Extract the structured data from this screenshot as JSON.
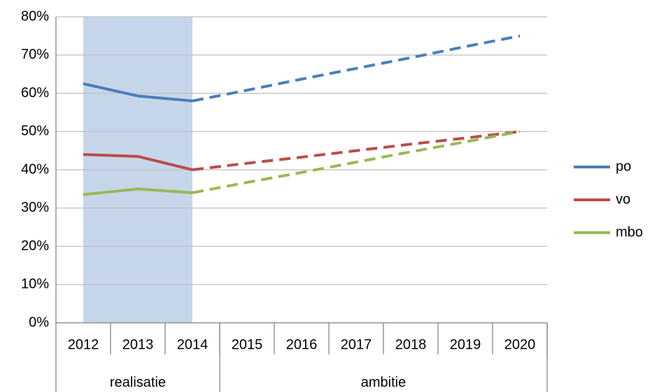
{
  "chart_data": {
    "type": "line",
    "categories": [
      "2012",
      "2013",
      "2014",
      "2015",
      "2016",
      "2017",
      "2018",
      "2019",
      "2020"
    ],
    "category_groups": [
      {
        "label": "realisatie",
        "count": 3
      },
      {
        "label": "ambitie",
        "count": 6
      }
    ],
    "series": [
      {
        "name": "po",
        "color": "#4a7ebb",
        "values": [
          62.5,
          59.3,
          58,
          60.8,
          63.7,
          66.5,
          69.3,
          72.2,
          75
        ]
      },
      {
        "name": "vo",
        "color": "#be4b48",
        "values": [
          44,
          43.5,
          40,
          41.7,
          43.3,
          45,
          46.7,
          48.3,
          50
        ]
      },
      {
        "name": "mbo",
        "color": "#98b954",
        "values": [
          33.5,
          35,
          34,
          36.7,
          39.3,
          42,
          44.7,
          47.3,
          50
        ]
      }
    ],
    "ylim": [
      0,
      80
    ],
    "yticks": [
      {
        "value": 0,
        "label": "0%"
      },
      {
        "value": 10,
        "label": "10%"
      },
      {
        "value": 20,
        "label": "20%"
      },
      {
        "value": 30,
        "label": "30%"
      },
      {
        "value": 40,
        "label": "40%"
      },
      {
        "value": 50,
        "label": "50%"
      },
      {
        "value": 60,
        "label": "60%"
      },
      {
        "value": 70,
        "label": "70%"
      },
      {
        "value": 80,
        "label": "80%"
      }
    ],
    "grid": true,
    "legend": "right",
    "highlight_color": "#c6d6ea"
  }
}
